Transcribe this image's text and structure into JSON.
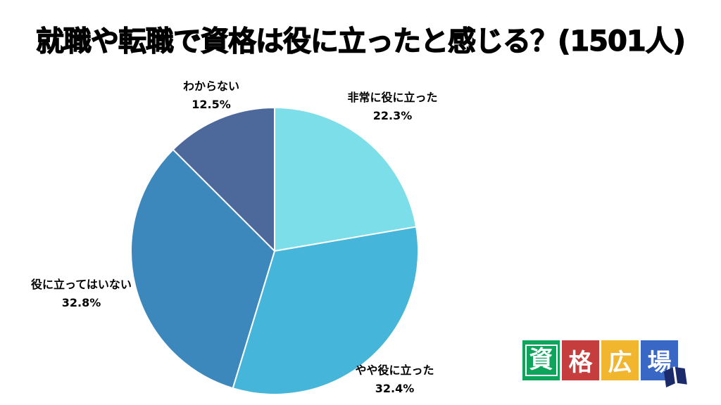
{
  "title": "就職や転職で資格は役に立ったと感じる？(1501人)",
  "chart_data": {
    "type": "pie",
    "title": "就職や転職で資格は役に立ったと感じる？(1501人)",
    "sample_size": 1501,
    "start_angle_deg": 0,
    "direction": "clockwise",
    "legend_position": "none",
    "segments": [
      {
        "label": "非常に役に立った",
        "value": 22.3,
        "display": "22.3%",
        "color": "#7CDEE8"
      },
      {
        "label": "やや役に立った",
        "value": 32.4,
        "display": "32.4%",
        "color": "#45B5DA"
      },
      {
        "label": "役に立ってはいない",
        "value": 32.8,
        "display": "32.8%",
        "color": "#3C88BC"
      },
      {
        "label": "わからない",
        "value": 12.5,
        "display": "12.5%",
        "color": "#4D689B"
      }
    ]
  },
  "logo": {
    "name": "資格広場",
    "tiles": [
      {
        "char": "資",
        "color": "#0DA45C",
        "framed": true
      },
      {
        "char": "格",
        "color": "#C63D3D",
        "framed": false
      },
      {
        "char": "広",
        "color": "#F2B52E",
        "framed": false
      },
      {
        "char": "場",
        "color": "#3867C6",
        "framed": false
      }
    ],
    "book_icon_color": "#1B2A6B"
  }
}
